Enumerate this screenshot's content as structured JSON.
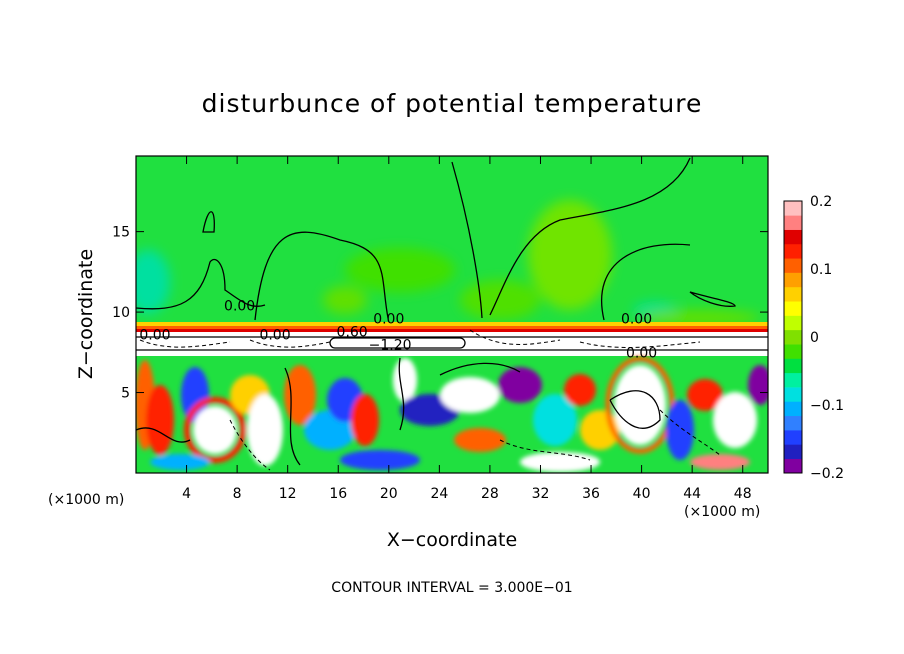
{
  "chart_data": {
    "type": "heatmap",
    "title": "disturbunce of potential temperature",
    "xlabel": "X−coordinate",
    "ylabel": "Z−coordinate",
    "x_unit": "(×1000 m)",
    "x_unit_right": "(×1000 m)",
    "xlim": [
      0,
      50
    ],
    "ylim": [
      0,
      19.7
    ],
    "x_ticks": [
      4,
      8,
      12,
      16,
      20,
      24,
      28,
      32,
      36,
      40,
      44,
      48
    ],
    "y_ticks": [
      5,
      10,
      15
    ],
    "colorbar": {
      "range": [
        -0.2,
        0.2
      ],
      "ticks": [
        {
          "value": 0.2,
          "label": "0.2"
        },
        {
          "value": 0.1,
          "label": "0.1"
        },
        {
          "value": 0,
          "label": "0"
        },
        {
          "value": -0.1,
          "label": "−0.1"
        },
        {
          "value": -0.2,
          "label": "−0.2"
        }
      ],
      "colors": [
        "#8000a0",
        "#2020c0",
        "#2040ff",
        "#3080ff",
        "#00b0ff",
        "#00e0e0",
        "#00f0a0",
        "#00e040",
        "#40e000",
        "#80e000",
        "#c0ff00",
        "#ffff00",
        "#ffd000",
        "#ffa000",
        "#ff6000",
        "#ff2000",
        "#e00000",
        "#ff8080",
        "#ffc0c0"
      ]
    },
    "contour_labels": [
      {
        "x": 20.0,
        "y": 9.6,
        "text": "0.00"
      },
      {
        "x": 1.5,
        "y": 8.6,
        "text": "0.00"
      },
      {
        "x": 8.2,
        "y": 10.4,
        "text": "0.00"
      },
      {
        "x": 11.0,
        "y": 8.6,
        "text": "0.00"
      },
      {
        "x": 17.1,
        "y": 8.8,
        "text": "0.60"
      },
      {
        "x": 20.1,
        "y": 8.0,
        "text": "−1.20"
      },
      {
        "x": 39.6,
        "y": 9.6,
        "text": "0.00"
      },
      {
        "x": 40.0,
        "y": 7.5,
        "text": "0.00"
      }
    ],
    "annotation": "CONTOUR INTERVAL = 3.000E−01"
  }
}
